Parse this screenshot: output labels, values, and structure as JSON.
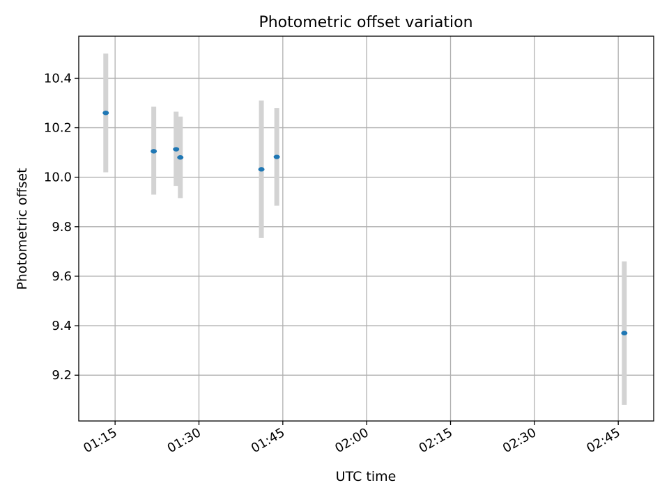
{
  "chart_data": {
    "type": "scatter",
    "title": "Photometric offset variation",
    "xlabel": "UTC time",
    "ylabel": "Photometric offset",
    "x_unit": "UTC time",
    "x_ticks": [
      "01:15",
      "01:30",
      "01:45",
      "02:00",
      "02:15",
      "02:30",
      "02:45"
    ],
    "y_ticks": [
      "9.2",
      "9.4",
      "9.6",
      "9.8",
      "10.0",
      "10.2",
      "10.4"
    ],
    "xlim": [
      "01:08:30",
      "02:51:20"
    ],
    "ylim": [
      9.015,
      10.57
    ],
    "grid": true,
    "points": [
      {
        "x": "01:13:20",
        "y": 10.26,
        "ylow": 10.02,
        "yhigh": 10.5
      },
      {
        "x": "01:21:55",
        "y": 10.105,
        "ylow": 9.93,
        "yhigh": 10.285
      },
      {
        "x": "01:25:55",
        "y": 10.113,
        "ylow": 9.965,
        "yhigh": 10.265
      },
      {
        "x": "01:26:40",
        "y": 10.08,
        "ylow": 9.915,
        "yhigh": 10.245
      },
      {
        "x": "01:41:10",
        "y": 10.032,
        "ylow": 9.755,
        "yhigh": 10.31
      },
      {
        "x": "01:43:55",
        "y": 10.082,
        "ylow": 9.885,
        "yhigh": 10.28
      },
      {
        "x": "02:46:05",
        "y": 9.37,
        "ylow": 9.08,
        "yhigh": 9.66
      }
    ],
    "colors": {
      "marker": "#1f77b4",
      "errorbar": "#d3d3d3",
      "grid": "#b0b0b0",
      "axes": "#000000"
    }
  }
}
